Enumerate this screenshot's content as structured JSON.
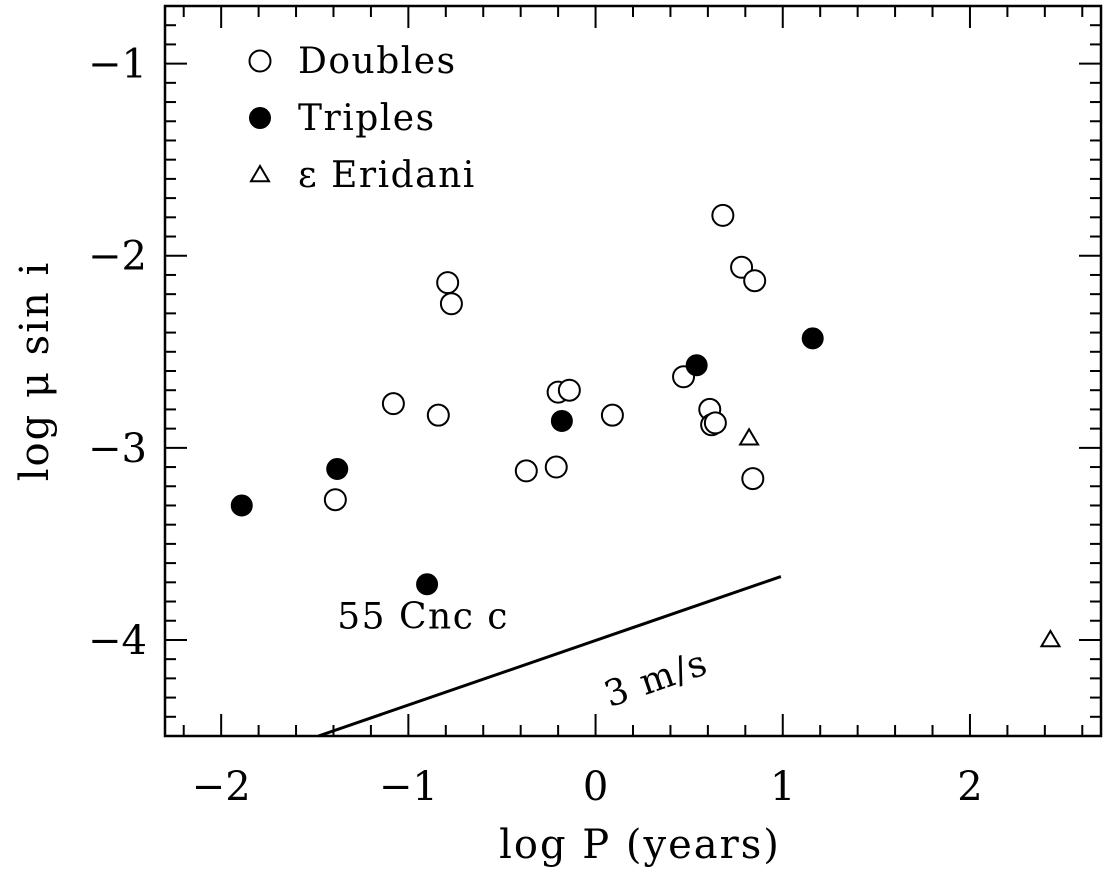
{
  "chart_data": {
    "type": "scatter",
    "xlabel": "log P (years)",
    "ylabel": "log μ sin i",
    "xlim": [
      -2.3,
      2.7
    ],
    "ylim": [
      -4.5,
      -0.7
    ],
    "xticks": [
      {
        "value": -2,
        "label": "−2"
      },
      {
        "value": -1,
        "label": "−1"
      },
      {
        "value": 0,
        "label": "0"
      },
      {
        "value": 1,
        "label": "1"
      },
      {
        "value": 2,
        "label": "2"
      }
    ],
    "yticks": [
      {
        "value": -1,
        "label": "−1"
      },
      {
        "value": -2,
        "label": "−2"
      },
      {
        "value": -3,
        "label": "−3"
      },
      {
        "value": -4,
        "label": "−4"
      }
    ],
    "legend": {
      "position": "top-left",
      "entries": [
        {
          "label": "Doubles",
          "marker": "open-circle"
        },
        {
          "label": "Triples",
          "marker": "filled-circle"
        },
        {
          "label": "ε Eridani",
          "marker": "open-triangle"
        }
      ]
    },
    "series": [
      {
        "name": "Doubles",
        "marker": "open-circle",
        "points": [
          [
            -1.39,
            -3.27
          ],
          [
            -1.08,
            -2.77
          ],
          [
            -0.84,
            -2.83
          ],
          [
            -0.79,
            -2.14
          ],
          [
            -0.77,
            -2.25
          ],
          [
            -0.37,
            -3.12
          ],
          [
            -0.21,
            -3.1
          ],
          [
            -0.2,
            -2.71
          ],
          [
            -0.14,
            -2.7
          ],
          [
            0.09,
            -2.83
          ],
          [
            0.47,
            -2.63
          ],
          [
            0.61,
            -2.8
          ],
          [
            0.62,
            -2.88
          ],
          [
            0.64,
            -2.87
          ],
          [
            0.68,
            -1.79
          ],
          [
            0.78,
            -2.06
          ],
          [
            0.85,
            -2.13
          ],
          [
            0.84,
            -3.16
          ]
        ]
      },
      {
        "name": "Triples",
        "marker": "filled-circle",
        "points": [
          [
            -1.89,
            -3.3
          ],
          [
            -1.38,
            -3.11
          ],
          [
            -0.9,
            -3.71
          ],
          [
            -0.18,
            -2.86
          ],
          [
            0.54,
            -2.57
          ],
          [
            1.16,
            -2.43
          ]
        ]
      },
      {
        "name": "ε Eridani",
        "marker": "open-triangle",
        "points": [
          [
            0.82,
            -2.95
          ],
          [
            2.43,
            -4.0
          ]
        ]
      }
    ],
    "reference_line": {
      "label": "3 m/s",
      "points": [
        [
          -1.48,
          -4.5
        ],
        [
          0.99,
          -3.67
        ]
      ]
    },
    "annotations": [
      {
        "text": "55 Cnc c",
        "x": -1.38,
        "y": -3.94
      }
    ]
  }
}
